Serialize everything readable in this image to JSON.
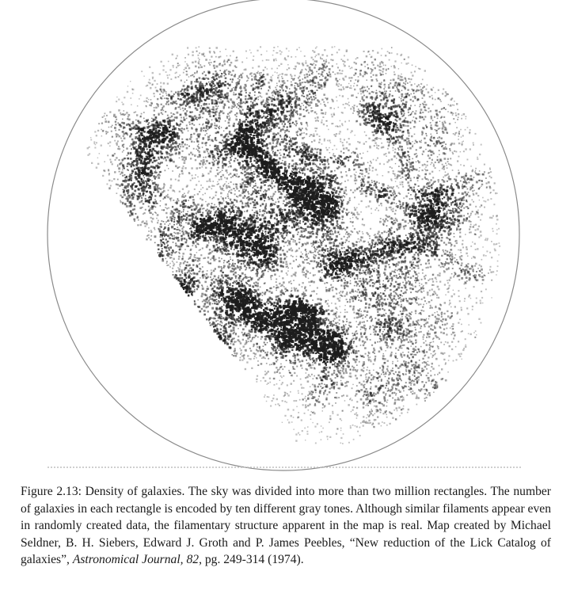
{
  "figure": {
    "label": "Figure 2.13:",
    "caption_parts": [
      " Density of galaxies. The sky was divided into more than two million rectangles. The number of galaxies in each rectangle is encoded by ten different gray tones. Although similar filaments appear even in randomly created data, the filamentary structure apparent in the map is real. Map created by Michael Seldner, B. H. Siebers, Edward J. Groth and P. James Peebles, “New reduction of the Lick Catalog of galaxies”, ",
      "Astronomical Journal, 82",
      ", pg. 249-314 (1974)."
    ]
  },
  "map": {
    "ink_color": "#1c1c1c",
    "border_color": "#8a8a8a"
  }
}
